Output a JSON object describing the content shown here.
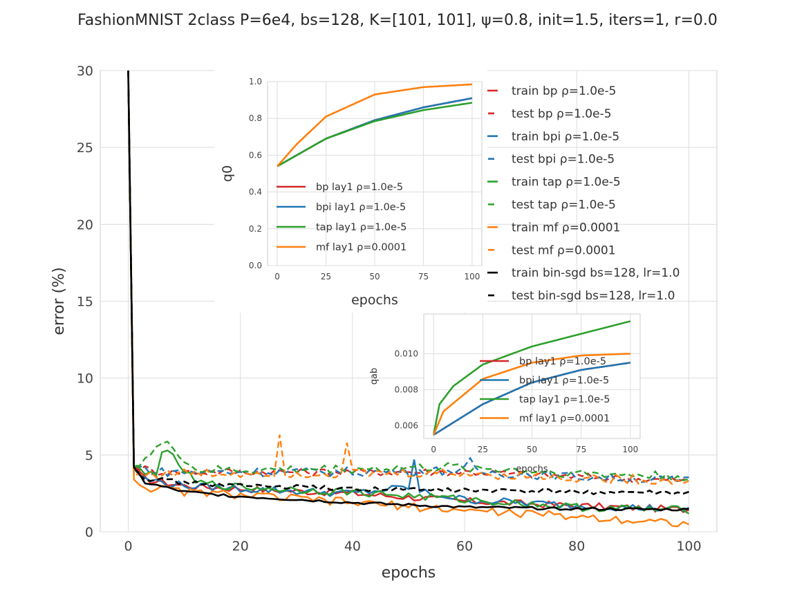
{
  "title": "FashionMNIST 2class P=6e4, bs=128, K=[101, 101], ψ=0.8, init=1.5, iters=1, r=0.0",
  "colors": {
    "bp": "#d62728",
    "bpi": "#1f77b4",
    "tap": "#2ca02c",
    "mf": "#ff7f0e",
    "sgd": "#000000"
  },
  "chart_data": [
    {
      "id": "main",
      "type": "line",
      "xlabel": "epochs",
      "ylabel": "error (%)",
      "xlim": [
        -5,
        105
      ],
      "ylim": [
        0,
        30
      ],
      "xticks": [
        "0",
        "20",
        "40",
        "60",
        "80",
        "100"
      ],
      "yticks": [
        "0",
        "5",
        "10",
        "15",
        "20",
        "25",
        "30"
      ],
      "grid": true,
      "legend_placement": "top-right",
      "series": [
        {
          "name": "train bp ρ=1.0e-5",
          "color_key": "bp",
          "dash": false,
          "anchors": [
            [
              0,
              30
            ],
            [
              1,
              4.1
            ],
            [
              3,
              3.4
            ],
            [
              10,
              3.0
            ],
            [
              20,
              2.8
            ],
            [
              40,
              2.5
            ],
            [
              60,
              2.0
            ],
            [
              80,
              1.7
            ],
            [
              100,
              1.45
            ]
          ]
        },
        {
          "name": "test bp ρ=1.0e-5",
          "color_key": "bp",
          "dash": true,
          "anchors": [
            [
              0,
              30
            ],
            [
              1,
              4.3
            ],
            [
              5,
              3.9
            ],
            [
              20,
              3.9
            ],
            [
              40,
              3.9
            ],
            [
              60,
              3.9
            ],
            [
              80,
              3.6
            ],
            [
              100,
              3.3
            ]
          ]
        },
        {
          "name": "train bpi ρ=1.0e-5",
          "color_key": "bpi",
          "dash": false,
          "anchors": [
            [
              0,
              30
            ],
            [
              1,
              4.1
            ],
            [
              3,
              3.4
            ],
            [
              10,
              3.0
            ],
            [
              20,
              2.8
            ],
            [
              40,
              2.5
            ],
            [
              50,
              2.9
            ],
            [
              51,
              4.6
            ],
            [
              52,
              2.6
            ],
            [
              60,
              2.1
            ],
            [
              80,
              1.7
            ],
            [
              100,
              1.45
            ]
          ]
        },
        {
          "name": "test bpi ρ=1.0e-5",
          "color_key": "bpi",
          "dash": true,
          "anchors": [
            [
              0,
              30
            ],
            [
              1,
              4.3
            ],
            [
              5,
              3.9
            ],
            [
              20,
              3.9
            ],
            [
              40,
              3.9
            ],
            [
              60,
              4.0
            ],
            [
              61,
              4.6
            ],
            [
              62,
              3.9
            ],
            [
              80,
              3.6
            ],
            [
              100,
              3.3
            ]
          ]
        },
        {
          "name": "train tap ρ=1.0e-5",
          "color_key": "tap",
          "dash": false,
          "anchors": [
            [
              0,
              30
            ],
            [
              1,
              4.3
            ],
            [
              3,
              3.7
            ],
            [
              5,
              3.9
            ],
            [
              6,
              5.3
            ],
            [
              8,
              4.8
            ],
            [
              12,
              3.2
            ],
            [
              20,
              2.9
            ],
            [
              40,
              2.6
            ],
            [
              60,
              2.1
            ],
            [
              80,
              1.6
            ],
            [
              100,
              1.4
            ]
          ]
        },
        {
          "name": "test tap ρ=1.0e-5",
          "color_key": "tap",
          "dash": true,
          "anchors": [
            [
              0,
              30
            ],
            [
              1,
              4.3
            ],
            [
              3,
              4.8
            ],
            [
              6,
              5.7
            ],
            [
              8,
              5.5
            ],
            [
              12,
              4.0
            ],
            [
              20,
              4.0
            ],
            [
              40,
              4.1
            ],
            [
              60,
              4.2
            ],
            [
              80,
              3.8
            ],
            [
              100,
              3.6
            ]
          ]
        },
        {
          "name": "train mf ρ=0.0001",
          "color_key": "mf",
          "dash": false,
          "anchors": [
            [
              0,
              30
            ],
            [
              1,
              3.4
            ],
            [
              3,
              2.9
            ],
            [
              10,
              2.6
            ],
            [
              20,
              2.4
            ],
            [
              40,
              1.9
            ],
            [
              60,
              1.4
            ],
            [
              80,
              1.0
            ],
            [
              100,
              0.55
            ]
          ]
        },
        {
          "name": "test mf ρ=0.0001",
          "color_key": "mf",
          "dash": true,
          "anchors": [
            [
              0,
              30
            ],
            [
              1,
              3.7
            ],
            [
              5,
              3.8
            ],
            [
              20,
              3.8
            ],
            [
              26,
              3.9
            ],
            [
              27,
              6.2
            ],
            [
              28,
              3.8
            ],
            [
              38,
              3.8
            ],
            [
              39,
              5.8
            ],
            [
              40,
              3.8
            ],
            [
              60,
              3.8
            ],
            [
              80,
              3.5
            ],
            [
              100,
              3.3
            ]
          ]
        },
        {
          "name": "train bin-sgd bs=128, lr=1.0",
          "color_key": "sgd",
          "dash": false,
          "anchors": [
            [
              0,
              30
            ],
            [
              1,
              4.2
            ],
            [
              3,
              3.2
            ],
            [
              10,
              2.6
            ],
            [
              20,
              2.3
            ],
            [
              40,
              1.9
            ],
            [
              60,
              1.6
            ],
            [
              80,
              1.5
            ],
            [
              100,
              1.45
            ]
          ]
        },
        {
          "name": "test bin-sgd bs=128, lr=1.0",
          "color_key": "sgd",
          "dash": true,
          "anchors": [
            [
              0,
              30
            ],
            [
              1,
              4.2
            ],
            [
              3,
              3.5
            ],
            [
              10,
              3.2
            ],
            [
              20,
              3.0
            ],
            [
              40,
              2.8
            ],
            [
              60,
              2.7
            ],
            [
              80,
              2.6
            ],
            [
              100,
              2.5
            ]
          ]
        }
      ]
    },
    {
      "id": "inset_q0",
      "type": "line",
      "xlabel": "epochs",
      "ylabel": "q0",
      "xlim": [
        -5,
        105
      ],
      "ylim": [
        0,
        1
      ],
      "xticks": [
        "0",
        "25",
        "50",
        "75",
        "100"
      ],
      "yticks": [
        "0.0",
        "0.2",
        "0.4",
        "0.6",
        "0.8",
        "1.0"
      ],
      "grid": true,
      "legend_placement": "lower-center",
      "series": [
        {
          "name": "bp lay1 ρ=1.0e-5",
          "color_key": "bp",
          "anchors": [
            [
              0,
              0.54
            ],
            [
              25,
              0.69
            ],
            [
              50,
              0.79
            ],
            [
              75,
              0.86
            ],
            [
              100,
              0.91
            ]
          ]
        },
        {
          "name": "bpi lay1 ρ=1.0e-5",
          "color_key": "bpi",
          "anchors": [
            [
              0,
              0.54
            ],
            [
              25,
              0.69
            ],
            [
              50,
              0.79
            ],
            [
              75,
              0.86
            ],
            [
              100,
              0.91
            ]
          ]
        },
        {
          "name": "tap lay1 ρ=1.0e-5",
          "color_key": "tap",
          "anchors": [
            [
              0,
              0.54
            ],
            [
              25,
              0.69
            ],
            [
              50,
              0.785
            ],
            [
              75,
              0.845
            ],
            [
              100,
              0.885
            ]
          ]
        },
        {
          "name": "mf lay1 ρ=0.0001",
          "color_key": "mf",
          "anchors": [
            [
              0,
              0.54
            ],
            [
              10,
              0.66
            ],
            [
              25,
              0.81
            ],
            [
              50,
              0.93
            ],
            [
              75,
              0.97
            ],
            [
              100,
              0.985
            ]
          ]
        }
      ]
    },
    {
      "id": "inset_qab",
      "type": "line",
      "xlabel": "epochs",
      "ylabel": "qab",
      "xlim": [
        -5,
        105
      ],
      "ylim": [
        0.0053,
        0.0122
      ],
      "xticks": [
        "0",
        "25",
        "50",
        "75",
        "100"
      ],
      "yticks": [
        "0.006",
        "0.008",
        "0.010"
      ],
      "grid": true,
      "legend_placement": "center-right",
      "series": [
        {
          "name": "bp lay1 ρ=1.0e-5",
          "color_key": "bp",
          "anchors": [
            [
              0,
              0.0055
            ],
            [
              25,
              0.0072
            ],
            [
              50,
              0.0084
            ],
            [
              75,
              0.0091
            ],
            [
              100,
              0.0095
            ]
          ]
        },
        {
          "name": "bpi lay1 ρ=1.0e-5",
          "color_key": "bpi",
          "anchors": [
            [
              0,
              0.0055
            ],
            [
              25,
              0.0072
            ],
            [
              50,
              0.0084
            ],
            [
              75,
              0.0091
            ],
            [
              100,
              0.0095
            ]
          ]
        },
        {
          "name": "tap lay1 ρ=1.0e-5",
          "color_key": "tap",
          "anchors": [
            [
              0,
              0.0055
            ],
            [
              3,
              0.0072
            ],
            [
              10,
              0.0082
            ],
            [
              25,
              0.0094
            ],
            [
              50,
              0.0104
            ],
            [
              75,
              0.0111
            ],
            [
              100,
              0.0118
            ]
          ]
        },
        {
          "name": "mf lay1 ρ=0.0001",
          "color_key": "mf",
          "anchors": [
            [
              0,
              0.0055
            ],
            [
              5,
              0.0068
            ],
            [
              25,
              0.0086
            ],
            [
              50,
              0.0095
            ],
            [
              75,
              0.0099
            ],
            [
              100,
              0.01
            ]
          ]
        }
      ]
    }
  ]
}
